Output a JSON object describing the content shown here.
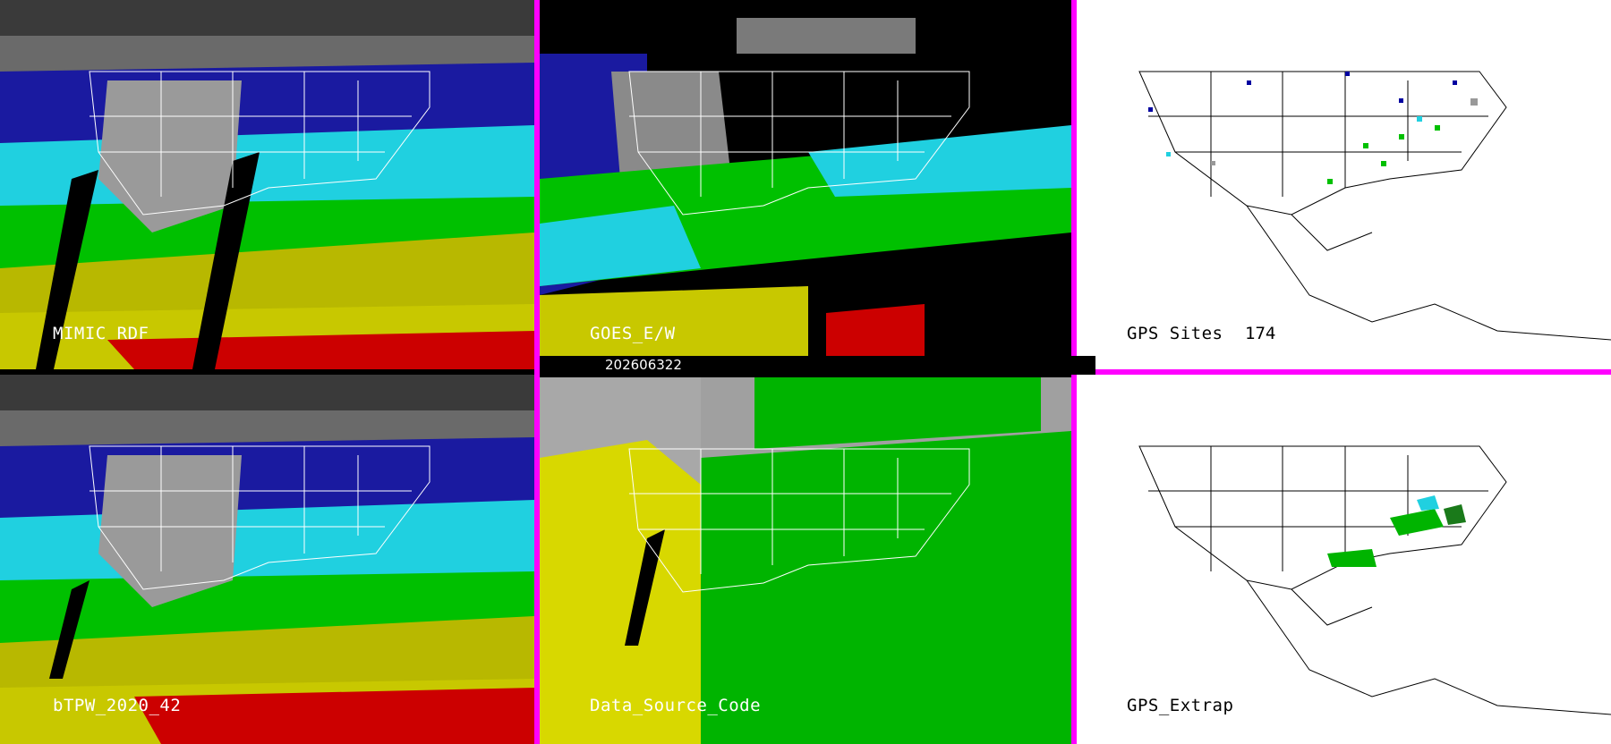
{
  "panels": [
    {
      "id": "mimic",
      "label": "MIMIC RDF",
      "theme": "dark"
    },
    {
      "id": "goes",
      "label": "GOES_E/W",
      "theme": "dark"
    },
    {
      "id": "gps-sites",
      "label": "GPS Sites",
      "theme": "light"
    },
    {
      "id": "btpw",
      "label": "bTPW_2020_42",
      "theme": "dark"
    },
    {
      "id": "dsc",
      "label": "Data_Source_Code",
      "theme": "dark"
    },
    {
      "id": "gps-extrap",
      "label": "GPS_Extrap",
      "theme": "light"
    }
  ],
  "gps_site_count": "174",
  "timestamp": "202606322",
  "colors": {
    "separator": "#ff00ff",
    "tpw_scale": [
      "#1a1a8c",
      "#0000cc",
      "#22d6e0",
      "#00c800",
      "#c8c800",
      "#d80000"
    ]
  }
}
